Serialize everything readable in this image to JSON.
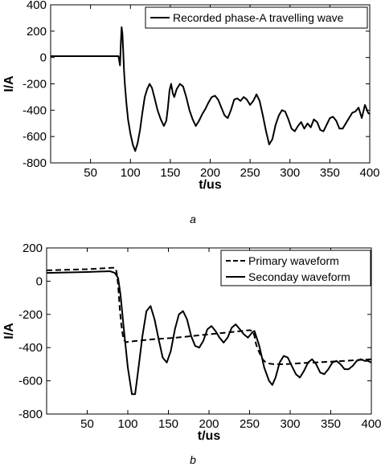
{
  "chart_data": [
    {
      "type": "line",
      "panel_label": "a",
      "xlabel": "t/us",
      "ylabel": "I/A",
      "xlim": [
        0,
        400
      ],
      "ylim": [
        -800,
        400
      ],
      "xticks": [
        50,
        100,
        150,
        200,
        250,
        300,
        350,
        400
      ],
      "yticks": [
        400,
        200,
        0,
        -200,
        -400,
        -600,
        -800
      ],
      "legend_position": "top-right",
      "series": [
        {
          "name": "Recorded phase-A travelling wave",
          "style": "solid",
          "x": [
            0,
            85,
            87,
            88,
            89,
            90,
            91,
            92,
            93,
            95,
            97,
            100,
            103,
            106,
            109,
            112,
            115,
            118,
            121,
            124,
            127,
            130,
            134,
            138,
            142,
            145,
            147,
            149,
            151,
            153,
            155,
            158,
            162,
            166,
            170,
            174,
            178,
            182,
            186,
            190,
            194,
            198,
            202,
            206,
            210,
            214,
            218,
            222,
            226,
            230,
            234,
            238,
            242,
            246,
            250,
            254,
            258,
            262,
            266,
            270,
            274,
            278,
            282,
            286,
            290,
            294,
            298,
            302,
            306,
            310,
            314,
            318,
            322,
            326,
            330,
            334,
            338,
            342,
            346,
            350,
            354,
            358,
            362,
            366,
            370,
            374,
            378,
            382,
            386,
            390,
            394,
            398,
            400
          ],
          "y": [
            10,
            10,
            -60,
            100,
            230,
            180,
            50,
            -100,
            -200,
            -350,
            -470,
            -580,
            -660,
            -710,
            -650,
            -550,
            -420,
            -300,
            -240,
            -200,
            -230,
            -300,
            -400,
            -470,
            -520,
            -480,
            -380,
            -250,
            -200,
            -270,
            -300,
            -240,
            -200,
            -220,
            -300,
            -400,
            -470,
            -520,
            -480,
            -430,
            -390,
            -340,
            -300,
            -290,
            -320,
            -380,
            -440,
            -460,
            -400,
            -320,
            -310,
            -330,
            -300,
            -320,
            -360,
            -330,
            -280,
            -330,
            -440,
            -560,
            -660,
            -620,
            -510,
            -440,
            -400,
            -410,
            -470,
            -540,
            -560,
            -520,
            -490,
            -540,
            -500,
            -530,
            -470,
            -490,
            -550,
            -560,
            -510,
            -460,
            -450,
            -480,
            -540,
            -540,
            -500,
            -460,
            -420,
            -410,
            -380,
            -460,
            -360,
            -420,
            -430
          ]
        }
      ]
    },
    {
      "type": "line",
      "panel_label": "b",
      "xlabel": "t/us",
      "ylabel": "I/A",
      "xlim": [
        0,
        400
      ],
      "ylim": [
        -800,
        200
      ],
      "xticks": [
        50,
        100,
        150,
        200,
        250,
        300,
        350,
        400
      ],
      "yticks": [
        200,
        0,
        -200,
        -400,
        -600,
        -800
      ],
      "legend_position": "top-right",
      "series": [
        {
          "name": "Primary waveform",
          "style": "dashed",
          "x": [
            0,
            50,
            80,
            84,
            86,
            88,
            90,
            92,
            94,
            96,
            98,
            100,
            110,
            130,
            160,
            190,
            220,
            250,
            254,
            256,
            258,
            262,
            266,
            270,
            275,
            280,
            290,
            300,
            320,
            340,
            360,
            380,
            400
          ],
          "y": [
            65,
            72,
            80,
            80,
            60,
            -20,
            -160,
            -260,
            -330,
            -360,
            -368,
            -365,
            -360,
            -350,
            -340,
            -325,
            -310,
            -295,
            -300,
            -330,
            -380,
            -430,
            -470,
            -490,
            -497,
            -500,
            -500,
            -498,
            -492,
            -487,
            -482,
            -476,
            -470
          ]
        },
        {
          "name": "Seconday waveform",
          "style": "solid",
          "x": [
            0,
            50,
            78,
            84,
            88,
            91,
            95,
            100,
            105,
            109,
            113,
            118,
            123,
            128,
            133,
            138,
            143,
            148,
            153,
            158,
            163,
            168,
            173,
            178,
            183,
            188,
            193,
            198,
            203,
            208,
            213,
            218,
            223,
            228,
            233,
            238,
            243,
            248,
            253,
            256,
            262,
            268,
            274,
            278,
            282,
            287,
            292,
            297,
            302,
            307,
            312,
            317,
            322,
            327,
            332,
            337,
            342,
            347,
            352,
            357,
            362,
            367,
            372,
            377,
            382,
            387,
            392,
            396,
            400
          ],
          "y": [
            50,
            55,
            60,
            50,
            20,
            -80,
            -280,
            -520,
            -680,
            -680,
            -530,
            -330,
            -180,
            -150,
            -230,
            -350,
            -460,
            -490,
            -420,
            -290,
            -200,
            -180,
            -230,
            -330,
            -390,
            -400,
            -360,
            -290,
            -270,
            -300,
            -340,
            -370,
            -340,
            -280,
            -260,
            -290,
            -320,
            -340,
            -310,
            -300,
            -390,
            -520,
            -600,
            -625,
            -580,
            -490,
            -450,
            -460,
            -510,
            -560,
            -580,
            -540,
            -490,
            -470,
            -500,
            -550,
            -560,
            -530,
            -490,
            -480,
            -500,
            -530,
            -530,
            -510,
            -480,
            -470,
            -480,
            -480,
            -490
          ]
        }
      ]
    }
  ]
}
